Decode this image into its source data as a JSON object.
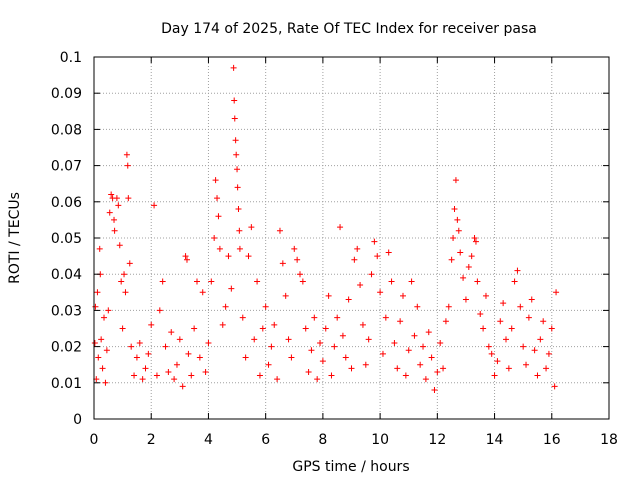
{
  "chart_data": {
    "type": "scatter",
    "title": "Day 174 of 2025, Rate Of TEC Index for receiver pasa",
    "xlabel": "GPS time / hours",
    "ylabel": "ROTI / TECUs",
    "xlim": [
      0,
      18
    ],
    "ylim": [
      0,
      0.1
    ],
    "x_ticks": [
      "0",
      "2",
      "4",
      "6",
      "8",
      "10",
      "12",
      "14",
      "16",
      "18"
    ],
    "y_ticks": [
      "0",
      "0.01",
      "0.02",
      "0.03",
      "0.04",
      "0.05",
      "0.06",
      "0.07",
      "0.08",
      "0.09",
      "0.1"
    ],
    "grid": true,
    "marker": "+",
    "marker_color": "#ff0000",
    "series": [
      {
        "name": "ROTI",
        "points": [
          [
            0.03,
            0.021
          ],
          [
            0.05,
            0.031
          ],
          [
            0.08,
            0.011
          ],
          [
            0.12,
            0.035
          ],
          [
            0.15,
            0.017
          ],
          [
            0.2,
            0.047
          ],
          [
            0.22,
            0.04
          ],
          [
            0.25,
            0.022
          ],
          [
            0.3,
            0.014
          ],
          [
            0.35,
            0.028
          ],
          [
            0.4,
            0.01
          ],
          [
            0.45,
            0.019
          ],
          [
            0.5,
            0.03
          ],
          [
            0.55,
            0.057
          ],
          [
            0.6,
            0.062
          ],
          [
            0.65,
            0.061
          ],
          [
            0.7,
            0.055
          ],
          [
            0.72,
            0.052
          ],
          [
            0.8,
            0.061
          ],
          [
            0.85,
            0.059
          ],
          [
            0.9,
            0.048
          ],
          [
            0.95,
            0.038
          ],
          [
            1.0,
            0.025
          ],
          [
            1.05,
            0.04
          ],
          [
            1.1,
            0.035
          ],
          [
            1.15,
            0.073
          ],
          [
            1.18,
            0.07
          ],
          [
            1.2,
            0.061
          ],
          [
            1.25,
            0.043
          ],
          [
            1.3,
            0.02
          ],
          [
            1.4,
            0.012
          ],
          [
            1.5,
            0.017
          ],
          [
            1.6,
            0.021
          ],
          [
            1.7,
            0.011
          ],
          [
            1.8,
            0.014
          ],
          [
            1.9,
            0.018
          ],
          [
            2.0,
            0.026
          ],
          [
            2.1,
            0.059
          ],
          [
            2.2,
            0.012
          ],
          [
            2.3,
            0.03
          ],
          [
            2.4,
            0.038
          ],
          [
            2.5,
            0.02
          ],
          [
            2.6,
            0.013
          ],
          [
            2.7,
            0.024
          ],
          [
            2.8,
            0.011
          ],
          [
            2.9,
            0.015
          ],
          [
            3.0,
            0.022
          ],
          [
            3.1,
            0.009
          ],
          [
            3.2,
            0.045
          ],
          [
            3.25,
            0.044
          ],
          [
            3.3,
            0.018
          ],
          [
            3.4,
            0.012
          ],
          [
            3.5,
            0.025
          ],
          [
            3.6,
            0.038
          ],
          [
            3.7,
            0.017
          ],
          [
            3.8,
            0.035
          ],
          [
            3.9,
            0.013
          ],
          [
            4.0,
            0.021
          ],
          [
            4.1,
            0.038
          ],
          [
            4.2,
            0.05
          ],
          [
            4.25,
            0.066
          ],
          [
            4.3,
            0.061
          ],
          [
            4.35,
            0.056
          ],
          [
            4.4,
            0.047
          ],
          [
            4.5,
            0.026
          ],
          [
            4.6,
            0.031
          ],
          [
            4.7,
            0.045
          ],
          [
            4.8,
            0.036
          ],
          [
            4.88,
            0.097
          ],
          [
            4.9,
            0.088
          ],
          [
            4.92,
            0.083
          ],
          [
            4.95,
            0.077
          ],
          [
            4.97,
            0.073
          ],
          [
            5.0,
            0.069
          ],
          [
            5.02,
            0.064
          ],
          [
            5.05,
            0.058
          ],
          [
            5.08,
            0.052
          ],
          [
            5.1,
            0.047
          ],
          [
            5.2,
            0.028
          ],
          [
            5.3,
            0.017
          ],
          [
            5.4,
            0.045
          ],
          [
            5.5,
            0.053
          ],
          [
            5.6,
            0.022
          ],
          [
            5.7,
            0.038
          ],
          [
            5.8,
            0.012
          ],
          [
            5.9,
            0.025
          ],
          [
            6.0,
            0.031
          ],
          [
            6.1,
            0.015
          ],
          [
            6.2,
            0.02
          ],
          [
            6.3,
            0.026
          ],
          [
            6.4,
            0.011
          ],
          [
            6.5,
            0.052
          ],
          [
            6.6,
            0.043
          ],
          [
            6.7,
            0.034
          ],
          [
            6.8,
            0.022
          ],
          [
            6.9,
            0.017
          ],
          [
            7.0,
            0.047
          ],
          [
            7.1,
            0.044
          ],
          [
            7.2,
            0.04
          ],
          [
            7.3,
            0.038
          ],
          [
            7.4,
            0.025
          ],
          [
            7.5,
            0.013
          ],
          [
            7.6,
            0.019
          ],
          [
            7.7,
            0.028
          ],
          [
            7.8,
            0.011
          ],
          [
            7.9,
            0.021
          ],
          [
            8.0,
            0.016
          ],
          [
            8.1,
            0.025
          ],
          [
            8.2,
            0.034
          ],
          [
            8.3,
            0.012
          ],
          [
            8.4,
            0.02
          ],
          [
            8.5,
            0.028
          ],
          [
            8.6,
            0.053
          ],
          [
            8.7,
            0.023
          ],
          [
            8.8,
            0.017
          ],
          [
            8.9,
            0.033
          ],
          [
            9.0,
            0.014
          ],
          [
            9.1,
            0.044
          ],
          [
            9.2,
            0.047
          ],
          [
            9.3,
            0.037
          ],
          [
            9.4,
            0.026
          ],
          [
            9.5,
            0.015
          ],
          [
            9.6,
            0.022
          ],
          [
            9.7,
            0.04
          ],
          [
            9.8,
            0.049
          ],
          [
            9.9,
            0.045
          ],
          [
            10.0,
            0.035
          ],
          [
            10.1,
            0.018
          ],
          [
            10.2,
            0.028
          ],
          [
            10.3,
            0.046
          ],
          [
            10.4,
            0.038
          ],
          [
            10.5,
            0.021
          ],
          [
            10.6,
            0.014
          ],
          [
            10.7,
            0.027
          ],
          [
            10.8,
            0.034
          ],
          [
            10.9,
            0.012
          ],
          [
            11.0,
            0.019
          ],
          [
            11.1,
            0.038
          ],
          [
            11.2,
            0.023
          ],
          [
            11.3,
            0.031
          ],
          [
            11.4,
            0.015
          ],
          [
            11.5,
            0.02
          ],
          [
            11.6,
            0.011
          ],
          [
            11.7,
            0.024
          ],
          [
            11.8,
            0.017
          ],
          [
            11.9,
            0.008
          ],
          [
            12.0,
            0.013
          ],
          [
            12.1,
            0.021
          ],
          [
            12.2,
            0.014
          ],
          [
            12.3,
            0.027
          ],
          [
            12.4,
            0.031
          ],
          [
            12.5,
            0.044
          ],
          [
            12.55,
            0.05
          ],
          [
            12.6,
            0.058
          ],
          [
            12.65,
            0.066
          ],
          [
            12.7,
            0.055
          ],
          [
            12.75,
            0.052
          ],
          [
            12.8,
            0.046
          ],
          [
            12.9,
            0.039
          ],
          [
            13.0,
            0.033
          ],
          [
            13.1,
            0.042
          ],
          [
            13.2,
            0.045
          ],
          [
            13.3,
            0.05
          ],
          [
            13.35,
            0.049
          ],
          [
            13.4,
            0.038
          ],
          [
            13.5,
            0.029
          ],
          [
            13.6,
            0.025
          ],
          [
            13.7,
            0.034
          ],
          [
            13.8,
            0.02
          ],
          [
            13.9,
            0.018
          ],
          [
            14.0,
            0.012
          ],
          [
            14.1,
            0.016
          ],
          [
            14.2,
            0.027
          ],
          [
            14.3,
            0.032
          ],
          [
            14.4,
            0.022
          ],
          [
            14.5,
            0.014
          ],
          [
            14.6,
            0.025
          ],
          [
            14.7,
            0.038
          ],
          [
            14.8,
            0.041
          ],
          [
            14.9,
            0.031
          ],
          [
            15.0,
            0.02
          ],
          [
            15.1,
            0.015
          ],
          [
            15.2,
            0.028
          ],
          [
            15.3,
            0.033
          ],
          [
            15.4,
            0.019
          ],
          [
            15.5,
            0.012
          ],
          [
            15.6,
            0.022
          ],
          [
            15.7,
            0.027
          ],
          [
            15.8,
            0.014
          ],
          [
            15.9,
            0.018
          ],
          [
            16.0,
            0.025
          ],
          [
            16.1,
            0.009
          ],
          [
            16.15,
            0.035
          ]
        ]
      }
    ]
  }
}
